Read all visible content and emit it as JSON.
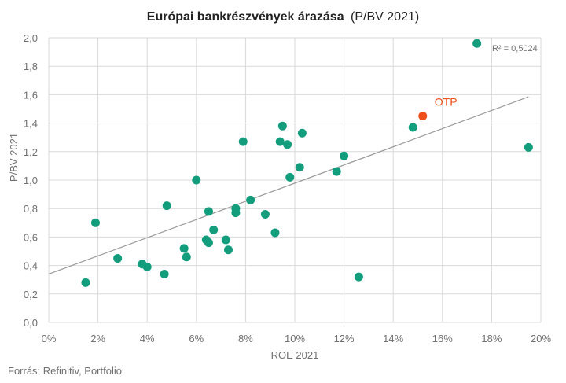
{
  "chart_data": {
    "type": "scatter",
    "title_bold": "Európai bankrészvények árazása",
    "title_rest": "(P/BV 2021)",
    "xlabel": "ROE 2021",
    "ylabel": "P/BV 2021",
    "xlim": [
      0,
      0.2
    ],
    "ylim": [
      0,
      2.0
    ],
    "x_ticks": [
      0,
      0.02,
      0.04,
      0.06,
      0.08,
      0.1,
      0.12,
      0.14,
      0.16,
      0.18,
      0.2
    ],
    "x_tick_labels": [
      "0%",
      "2%",
      "4%",
      "6%",
      "8%",
      "10%",
      "12%",
      "14%",
      "16%",
      "18%",
      "20%"
    ],
    "y_ticks": [
      0,
      0.2,
      0.4,
      0.6,
      0.8,
      1.0,
      1.2,
      1.4,
      1.6,
      1.8,
      2.0
    ],
    "y_tick_labels": [
      "0,0",
      "0,2",
      "0,4",
      "0,6",
      "0,8",
      "1,0",
      "1,2",
      "1,4",
      "1,6",
      "1,8",
      "2,0"
    ],
    "grid": true,
    "point_color": "#129E7C",
    "highlight_color": "#F04E1B",
    "trendline_color": "#9a9a9a",
    "points": [
      {
        "x": 0.015,
        "y": 0.28
      },
      {
        "x": 0.019,
        "y": 0.7
      },
      {
        "x": 0.028,
        "y": 0.45
      },
      {
        "x": 0.038,
        "y": 0.41
      },
      {
        "x": 0.04,
        "y": 0.39
      },
      {
        "x": 0.047,
        "y": 0.34
      },
      {
        "x": 0.048,
        "y": 0.82
      },
      {
        "x": 0.055,
        "y": 0.52
      },
      {
        "x": 0.056,
        "y": 0.46
      },
      {
        "x": 0.06,
        "y": 1.0
      },
      {
        "x": 0.064,
        "y": 0.58
      },
      {
        "x": 0.065,
        "y": 0.56
      },
      {
        "x": 0.065,
        "y": 0.78
      },
      {
        "x": 0.067,
        "y": 0.65
      },
      {
        "x": 0.072,
        "y": 0.58
      },
      {
        "x": 0.073,
        "y": 0.51
      },
      {
        "x": 0.076,
        "y": 0.8
      },
      {
        "x": 0.076,
        "y": 0.77
      },
      {
        "x": 0.079,
        "y": 1.27
      },
      {
        "x": 0.082,
        "y": 0.86
      },
      {
        "x": 0.088,
        "y": 0.76
      },
      {
        "x": 0.092,
        "y": 0.63
      },
      {
        "x": 0.094,
        "y": 1.27
      },
      {
        "x": 0.095,
        "y": 1.38
      },
      {
        "x": 0.097,
        "y": 1.25
      },
      {
        "x": 0.098,
        "y": 1.02
      },
      {
        "x": 0.102,
        "y": 1.09
      },
      {
        "x": 0.103,
        "y": 1.33
      },
      {
        "x": 0.117,
        "y": 1.06
      },
      {
        "x": 0.12,
        "y": 1.17
      },
      {
        "x": 0.126,
        "y": 0.32
      },
      {
        "x": 0.148,
        "y": 1.37
      },
      {
        "x": 0.174,
        "y": 1.96
      },
      {
        "x": 0.195,
        "y": 1.23
      }
    ],
    "highlight": {
      "label": "OTP",
      "x": 0.152,
      "y": 1.45
    },
    "trendline": {
      "x0": 0.0,
      "y0": 0.34,
      "x1": 0.195,
      "y1": 1.585
    },
    "r_squared_label": "R² = 0,5024",
    "source": "Forrás: Refinitiv, Portfolio"
  }
}
